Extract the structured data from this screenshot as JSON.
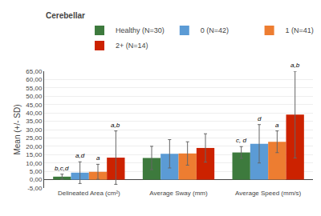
{
  "chart_data": {
    "type": "bar",
    "title": "Cerebellar",
    "ylabel": "Mean (+/- SD)",
    "categories": [
      "Delineated Area (cm²)",
      "Average Sway (mm)",
      "Average Speed (mm/s)"
    ],
    "series": [
      {
        "name": "Healthy (N=30)",
        "color": "#3d7a3d",
        "values": [
          1.8,
          13.0,
          16.3
        ],
        "errors": [
          1.5,
          7.0,
          3.5
        ]
      },
      {
        "name": "0 (N=42)",
        "color": "#5b9bd5",
        "values": [
          4.2,
          15.5,
          21.5
        ],
        "errors": [
          6.5,
          8.5,
          11.5
        ]
      },
      {
        "name": "1 (N=41)",
        "color": "#ed7d31",
        "values": [
          4.7,
          15.7,
          22.7
        ],
        "errors": [
          4.5,
          7.0,
          6.5
        ]
      },
      {
        "name": "2+ (N=14)",
        "color": "#cc2200",
        "values": [
          13.2,
          19.0,
          39.0
        ],
        "errors": [
          16.0,
          8.5,
          26.0
        ]
      }
    ],
    "annotations": [
      {
        "text": "b,c,d",
        "category": "Delineated Area (cm²)",
        "series": "Healthy (N=30)"
      },
      {
        "text": "a,d",
        "category": "Delineated Area (cm²)",
        "series": "0 (N=42)"
      },
      {
        "text": "a",
        "category": "Delineated Area (cm²)",
        "series": "1 (N=41)"
      },
      {
        "text": "a,b",
        "category": "Delineated Area (cm²)",
        "series": "2+ (N=14)"
      },
      {
        "text": "c, d",
        "category": "Average Speed (mm/s)",
        "series": "Healthy (N=30)"
      },
      {
        "text": "d",
        "category": "Average Speed (mm/s)",
        "series": "0 (N=42)"
      },
      {
        "text": "a",
        "category": "Average Speed (mm/s)",
        "series": "1 (N=41)"
      },
      {
        "text": "a,b",
        "category": "Average Speed (mm/s)",
        "series": "2+ (N=14)"
      }
    ],
    "ylim": [
      -5,
      65
    ],
    "yticks": [
      {
        "value": -5,
        "label": "-5,00"
      },
      {
        "value": 0.0,
        "label": "0,00"
      },
      {
        "value": 5.0,
        "label": "5,00"
      },
      {
        "value": 10.0,
        "label": "10,00"
      },
      {
        "value": 15.0,
        "label": "15,00"
      },
      {
        "value": 20.0,
        "label": "20,00"
      },
      {
        "value": 25.0,
        "label": "25,00"
      },
      {
        "value": 30.0,
        "label": "30,00"
      },
      {
        "value": 35.0,
        "label": "35,00"
      },
      {
        "value": 40.0,
        "label": "40,00"
      },
      {
        "value": 45.0,
        "label": "45,00"
      },
      {
        "value": 50.0,
        "label": "50,00"
      },
      {
        "value": 55.0,
        "label": "55,00"
      },
      {
        "value": 60.0,
        "label": "60,00"
      },
      {
        "value": 65.0,
        "label": "65,00"
      }
    ],
    "grid": true,
    "legend": "top"
  }
}
